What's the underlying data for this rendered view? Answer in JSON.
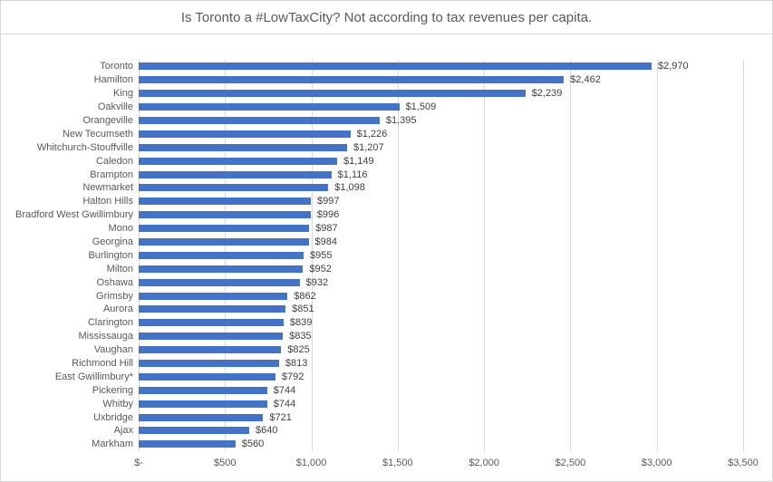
{
  "title": "Is Toronto a #LowTaxCity? Not according to tax revenues per capita.",
  "colors": {
    "bar": "#4472C4",
    "gridline": "#D9D9D9",
    "axis_text": "#595959",
    "data_label": "#404040",
    "title_text": "#595959",
    "border": "#D6D6D6"
  },
  "chart_data": {
    "type": "bar",
    "orientation": "horizontal",
    "title": "Is Toronto a #LowTaxCity? Not according to tax revenues per capita.",
    "categories": [
      "Toronto",
      "Hamilton",
      "King",
      "Oakville",
      "Orangeville",
      "New Tecumseth",
      "Whitchurch-Stouffville",
      "Caledon",
      "Brampton",
      "Newmarket",
      "Halton Hills",
      "Bradford West Gwillimbury",
      "Mono",
      "Georgina",
      "Burlington",
      "Milton",
      "Oshawa",
      "Grimsby",
      "Aurora",
      "Clarington",
      "Mississauga",
      "Vaughan",
      "Richmond Hill",
      "East Gwillimbury*",
      "Pickering",
      "Whitby",
      "Uxbridge",
      "Ajax",
      "Markham"
    ],
    "values": [
      2970,
      2462,
      2239,
      1509,
      1395,
      1226,
      1207,
      1149,
      1116,
      1098,
      997,
      996,
      987,
      984,
      955,
      952,
      932,
      862,
      851,
      839,
      835,
      825,
      813,
      792,
      744,
      744,
      721,
      640,
      560
    ],
    "value_labels": [
      "$2,970",
      "$2,462",
      "$2,239",
      "$1,509",
      "$1,395",
      "$1,226",
      "$1,207",
      "$1,149",
      "$1,116",
      "$1,098",
      "$997",
      "$996",
      "$987",
      "$984",
      "$955",
      "$952",
      "$932",
      "$862",
      "$851",
      "$839",
      "$835",
      "$825",
      "$813",
      "$792",
      "$744",
      "$744",
      "$721",
      "$640",
      "$560"
    ],
    "xlabel": "",
    "ylabel": "",
    "xlim": [
      0,
      3500
    ],
    "x_ticks": [
      0,
      500,
      1000,
      1500,
      2000,
      2500,
      3000,
      3500
    ],
    "x_tick_labels": [
      "$-",
      "$500",
      "$1,000",
      "$1,500",
      "$2,000",
      "$2,500",
      "$3,000",
      "$3,500"
    ],
    "grid": "vertical-gridlines-on",
    "legend": "none",
    "data_labels": "outside-end"
  }
}
